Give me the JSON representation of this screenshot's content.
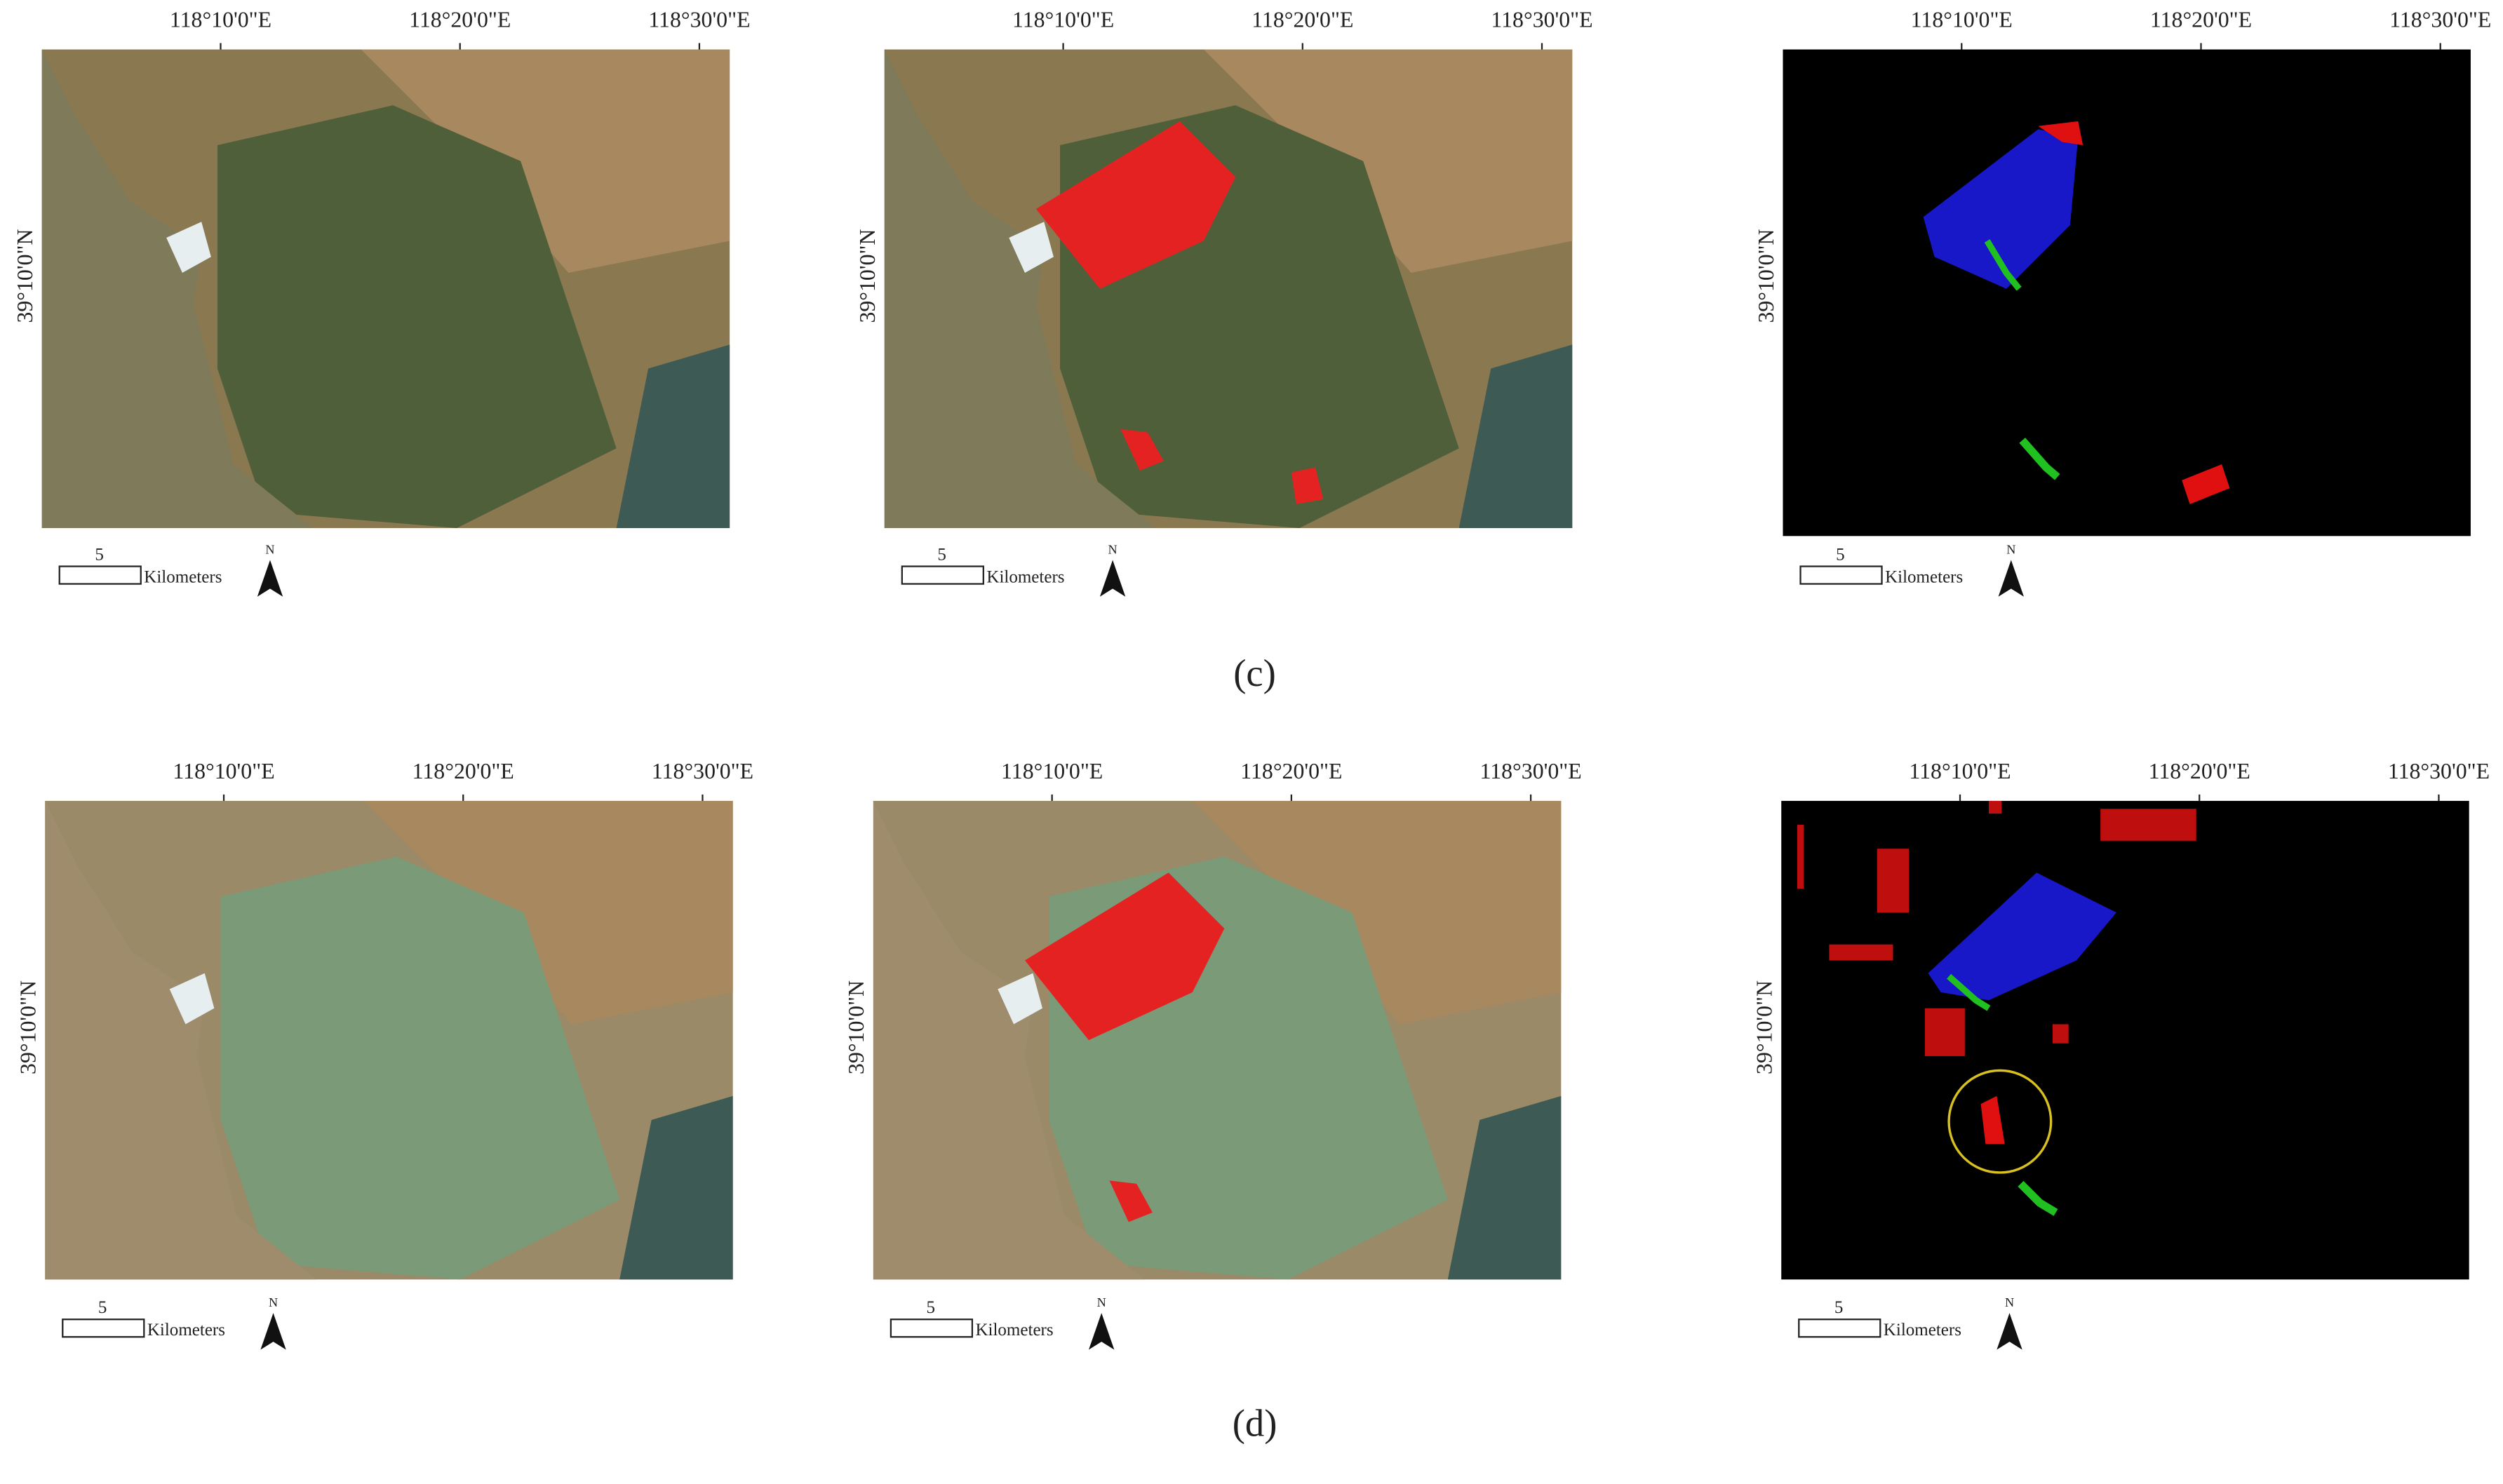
{
  "rows": [
    {
      "panels": [
        {
          "x_ticks": [
            "118°10'0\"E",
            "118°20'0\"E",
            "118°30'0\"E"
          ],
          "y_tick": "39°10'0\"N",
          "scale_value": "5",
          "scale_unit": "Kilometers",
          "north": "N"
        },
        {
          "x_ticks": [
            "118°10'0\"E",
            "118°20'0\"E",
            "118°30'0\"E"
          ],
          "y_tick": "39°10'0\"N",
          "scale_value": "5",
          "scale_unit": "Kilometers",
          "north": "N"
        },
        {
          "x_ticks": [
            "118°10'0\"E",
            "118°20'0\"E",
            "118°30'0\"E"
          ],
          "y_tick": "39°10'0\"N",
          "scale_value": "5",
          "scale_unit": "Kilometers",
          "north": "N"
        }
      ],
      "caption": "(c)"
    },
    {
      "panels": [
        {
          "x_ticks": [
            "118°10'0\"E",
            "118°20'0\"E",
            "118°30'0\"E"
          ],
          "y_tick": "39°10'0\"N",
          "scale_value": "5",
          "scale_unit": "Kilometers",
          "north": "N"
        },
        {
          "x_ticks": [
            "118°10'0\"E",
            "118°20'0\"E",
            "118°30'0\"E"
          ],
          "y_tick": "39°10'0\"N",
          "scale_value": "5",
          "scale_unit": "Kilometers",
          "north": "N"
        },
        {
          "x_ticks": [
            "118°10'0\"E",
            "118°20'0\"E",
            "118°30'0\"E"
          ],
          "y_tick": "39°10'0\"N",
          "scale_value": "5",
          "scale_unit": "Kilometers",
          "north": "N"
        }
      ],
      "caption": "(d)"
    }
  ]
}
